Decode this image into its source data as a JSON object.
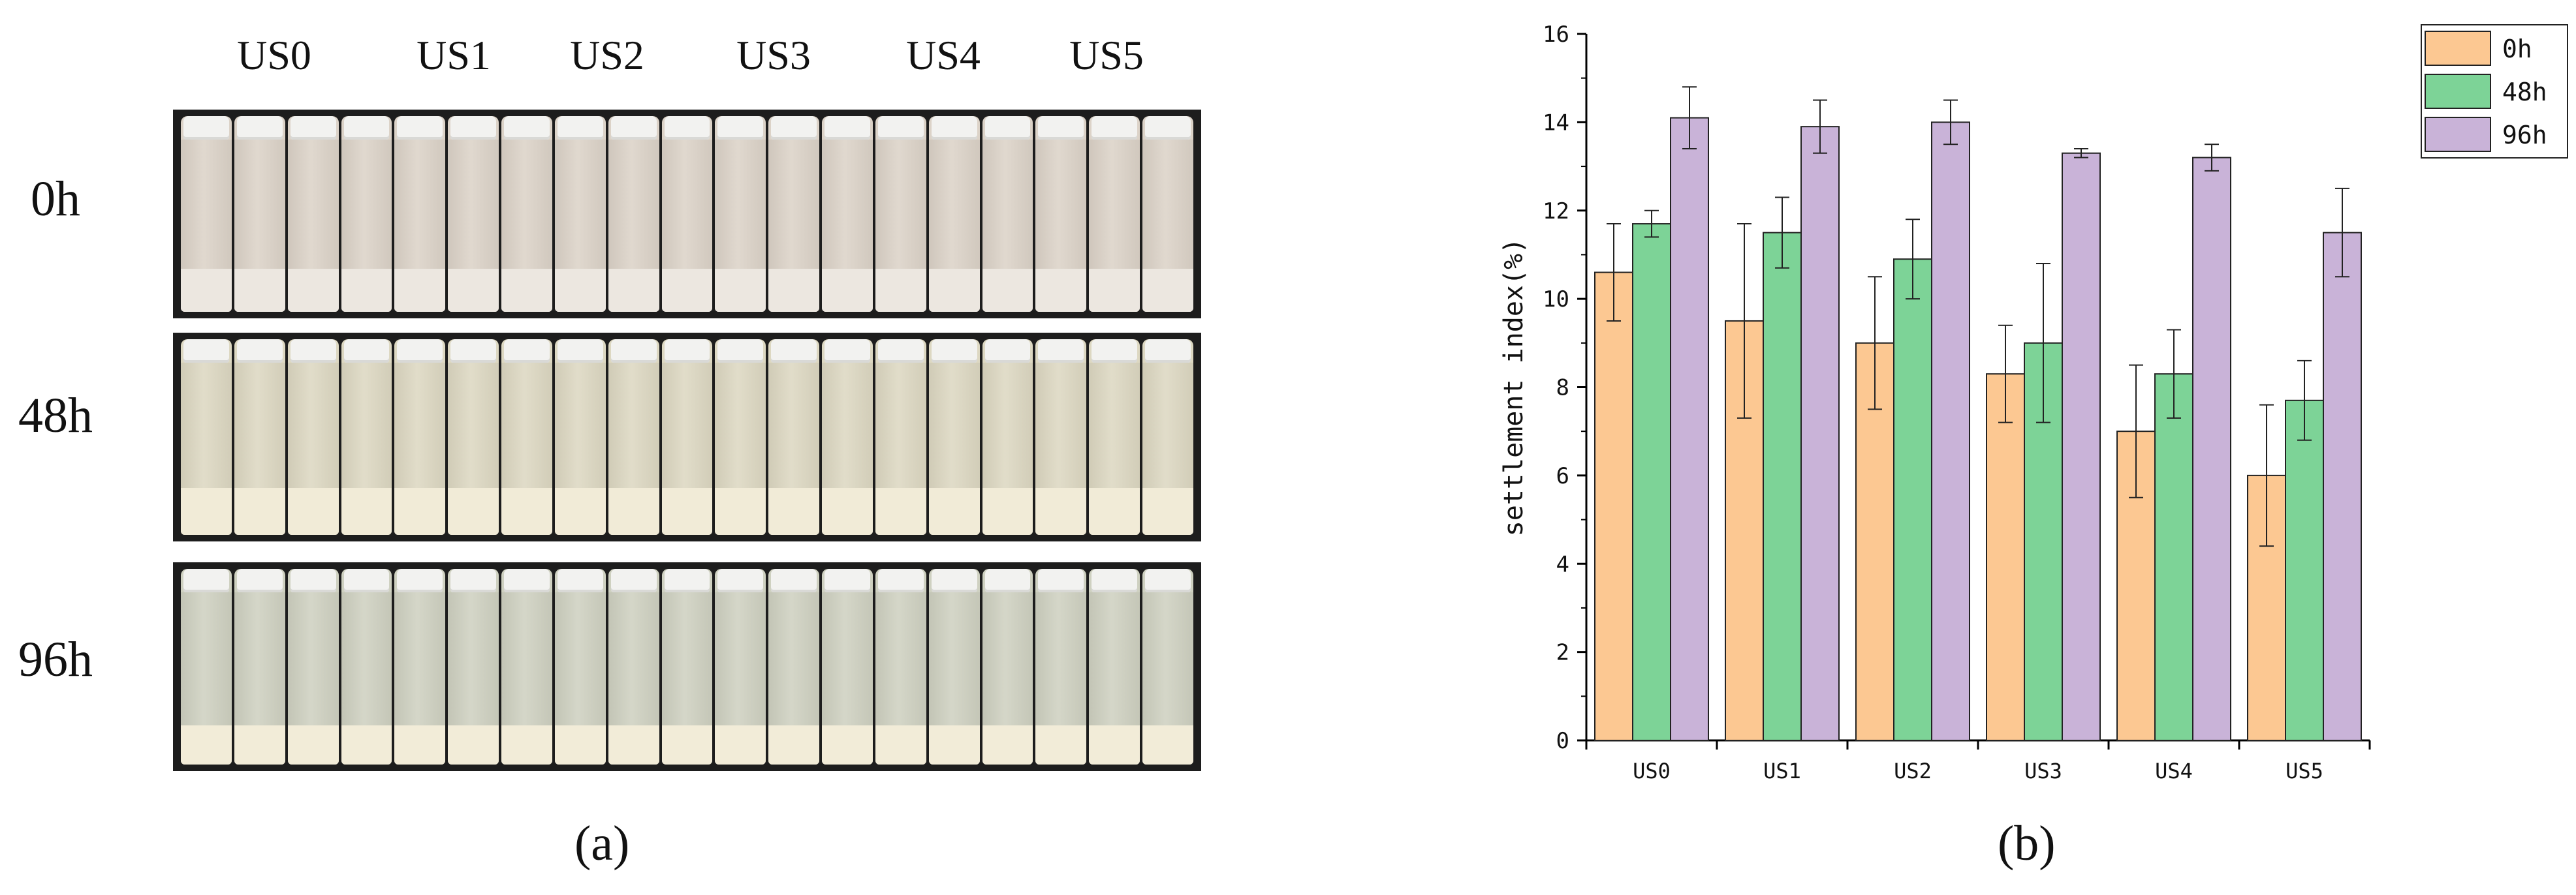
{
  "panel_a": {
    "caption": "(a)",
    "columns": [
      "US0",
      "US1",
      "US2",
      "US3",
      "US4",
      "US5"
    ],
    "rows": [
      {
        "label": "0h",
        "liquid_color": "#dcd3c8",
        "sediment_color": "#ece7e0",
        "sediment_fraction": 0.22
      },
      {
        "label": "48h",
        "liquid_color": "#ddd8c2",
        "sediment_color": "#f1ebd7",
        "sediment_fraction": 0.24
      },
      {
        "label": "96h",
        "liquid_color": "#cfd1c1",
        "sediment_color": "#f2ecd8",
        "sediment_fraction": 0.2
      }
    ]
  },
  "panel_b": {
    "caption": "(b)"
  },
  "chart_data": {
    "type": "bar",
    "title": "",
    "xlabel": "",
    "ylabel": "settlement index(%)",
    "ylim": [
      0,
      16
    ],
    "yticks": [
      0,
      2,
      4,
      6,
      8,
      10,
      12,
      14,
      16
    ],
    "categories": [
      "US0",
      "US1",
      "US2",
      "US3",
      "US4",
      "US5"
    ],
    "legend_position": "top-right",
    "grid": false,
    "series": [
      {
        "name": "0h",
        "color": "#fcc892",
        "values": [
          10.6,
          9.5,
          9.0,
          8.3,
          7.0,
          6.0
        ],
        "errors": [
          1.1,
          2.2,
          1.5,
          1.1,
          1.5,
          1.6
        ]
      },
      {
        "name": "48h",
        "color": "#7dd397",
        "values": [
          11.7,
          11.5,
          10.9,
          9.0,
          8.3,
          7.7
        ],
        "errors": [
          0.3,
          0.8,
          0.9,
          1.8,
          1.0,
          0.9
        ]
      },
      {
        "name": "96h",
        "color": "#c9b3d8",
        "values": [
          14.1,
          13.9,
          14.0,
          13.3,
          13.2,
          11.5
        ],
        "errors": [
          0.7,
          0.6,
          0.5,
          0.1,
          0.3,
          1.0
        ]
      }
    ]
  }
}
